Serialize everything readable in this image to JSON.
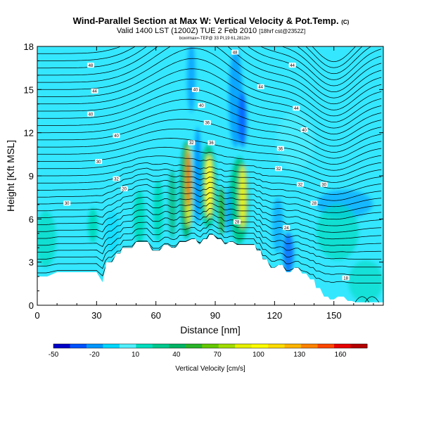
{
  "chart_data": {
    "type": "heatmap",
    "title": "Wind-Parallel Section at Max W: Vertical Velocity & Pot.Temp.",
    "title_mark": "(C)",
    "subtitle": "Valid 1400 LST (1200Z) TUE 2 Feb 2010",
    "subtitle_right": "[18hrf cst@2352Z]",
    "info_line": "box#max=-TEP@ 33 PI,19 61,2812m",
    "xlabel": "Distance [nm]",
    "ylabel": "Height [Kft MSL]",
    "xlim": [
      0,
      175
    ],
    "ylim": [
      0,
      18
    ],
    "xticks": [
      "0",
      "30",
      "60",
      "90",
      "120",
      "150"
    ],
    "yticks": [
      "0",
      "3",
      "6",
      "9",
      "12",
      "15",
      "18"
    ],
    "colorbar": {
      "label": "Vertical Velocity [cm/s]",
      "tick_labels": [
        "-50",
        "-20",
        "10",
        "40",
        "70",
        "100",
        "130",
        "160"
      ],
      "colors": [
        "#0000c8",
        "#0050ff",
        "#0096ff",
        "#00d7ff",
        "#50f0ff",
        "#00dcbe",
        "#00c88c",
        "#00b464",
        "#28b428",
        "#64c800",
        "#a0dc00",
        "#e6f000",
        "#ffff00",
        "#ffdc00",
        "#ffb400",
        "#ff8200",
        "#ff4600",
        "#e60000",
        "#b40000"
      ]
    },
    "terrain_top_kft": [
      [
        0,
        2.0
      ],
      [
        5,
        2.0
      ],
      [
        10,
        2.3
      ],
      [
        30,
        2.3
      ],
      [
        33,
        1.6
      ],
      [
        35,
        3.0
      ],
      [
        38,
        3.0
      ],
      [
        40,
        3.6
      ],
      [
        42,
        3.6
      ],
      [
        43,
        4.0
      ],
      [
        48,
        4.0
      ],
      [
        50,
        4.4
      ],
      [
        56,
        4.4
      ],
      [
        58,
        3.8
      ],
      [
        62,
        3.8
      ],
      [
        64,
        4.2
      ],
      [
        66,
        4.2
      ],
      [
        68,
        4.0
      ],
      [
        70,
        4.0
      ],
      [
        72,
        4.4
      ],
      [
        75,
        4.4
      ],
      [
        78,
        4.6
      ],
      [
        80,
        4.6
      ],
      [
        82,
        4.2
      ],
      [
        84,
        4.6
      ],
      [
        86,
        4.6
      ],
      [
        87,
        4.9
      ],
      [
        89,
        4.9
      ],
      [
        91,
        4.6
      ],
      [
        93,
        4.6
      ],
      [
        95,
        4.2
      ],
      [
        97,
        4.4
      ],
      [
        99,
        4.4
      ],
      [
        101,
        4.2
      ],
      [
        110,
        4.2
      ],
      [
        111,
        3.8
      ],
      [
        113,
        3.8
      ],
      [
        114,
        3.2
      ],
      [
        116,
        3.2
      ],
      [
        118,
        2.6
      ],
      [
        120,
        2.6
      ],
      [
        122,
        2.8
      ],
      [
        124,
        2.8
      ],
      [
        126,
        2.3
      ],
      [
        128,
        2.3
      ],
      [
        130,
        2.6
      ],
      [
        132,
        2.6
      ],
      [
        134,
        2.2
      ],
      [
        136,
        2.2
      ],
      [
        138,
        1.8
      ],
      [
        140,
        1.8
      ],
      [
        141,
        1.2
      ],
      [
        143,
        1.2
      ],
      [
        145,
        0.6
      ],
      [
        147,
        0.6
      ],
      [
        148,
        0.4
      ],
      [
        150,
        0.4
      ],
      [
        152,
        0.6
      ],
      [
        155,
        0.6
      ],
      [
        157,
        0.3
      ],
      [
        159,
        0.3
      ],
      [
        161,
        0.2
      ],
      [
        175,
        0.2
      ]
    ],
    "contour_labels": [
      {
        "x": 27,
        "y": 16.7,
        "text": "48"
      },
      {
        "x": 29,
        "y": 14.9,
        "text": "44"
      },
      {
        "x": 27,
        "y": 13.3,
        "text": "40"
      },
      {
        "x": 40,
        "y": 11.8,
        "text": "40"
      },
      {
        "x": 31,
        "y": 10.0,
        "text": "30"
      },
      {
        "x": 40,
        "y": 8.8,
        "text": "32"
      },
      {
        "x": 44,
        "y": 8.1,
        "text": "20"
      },
      {
        "x": 15,
        "y": 7.1,
        "text": "30"
      },
      {
        "x": 100,
        "y": 17.6,
        "text": "48"
      },
      {
        "x": 129,
        "y": 16.7,
        "text": "44"
      },
      {
        "x": 113,
        "y": 15.2,
        "text": "44"
      },
      {
        "x": 80,
        "y": 15.0,
        "text": "40"
      },
      {
        "x": 83,
        "y": 13.9,
        "text": "40"
      },
      {
        "x": 86,
        "y": 12.7,
        "text": "36"
      },
      {
        "x": 78,
        "y": 11.3,
        "text": "32"
      },
      {
        "x": 88,
        "y": 11.3,
        "text": "36"
      },
      {
        "x": 131,
        "y": 13.7,
        "text": "44"
      },
      {
        "x": 135,
        "y": 12.2,
        "text": "40"
      },
      {
        "x": 123,
        "y": 10.9,
        "text": "36"
      },
      {
        "x": 122,
        "y": 9.5,
        "text": "32"
      },
      {
        "x": 133,
        "y": 8.4,
        "text": "32"
      },
      {
        "x": 145,
        "y": 8.4,
        "text": "30"
      },
      {
        "x": 140,
        "y": 7.1,
        "text": "28"
      },
      {
        "x": 101,
        "y": 5.8,
        "text": "28"
      },
      {
        "x": 126,
        "y": 5.4,
        "text": "24"
      },
      {
        "x": 156,
        "y": 1.9,
        "text": "18"
      }
    ]
  }
}
